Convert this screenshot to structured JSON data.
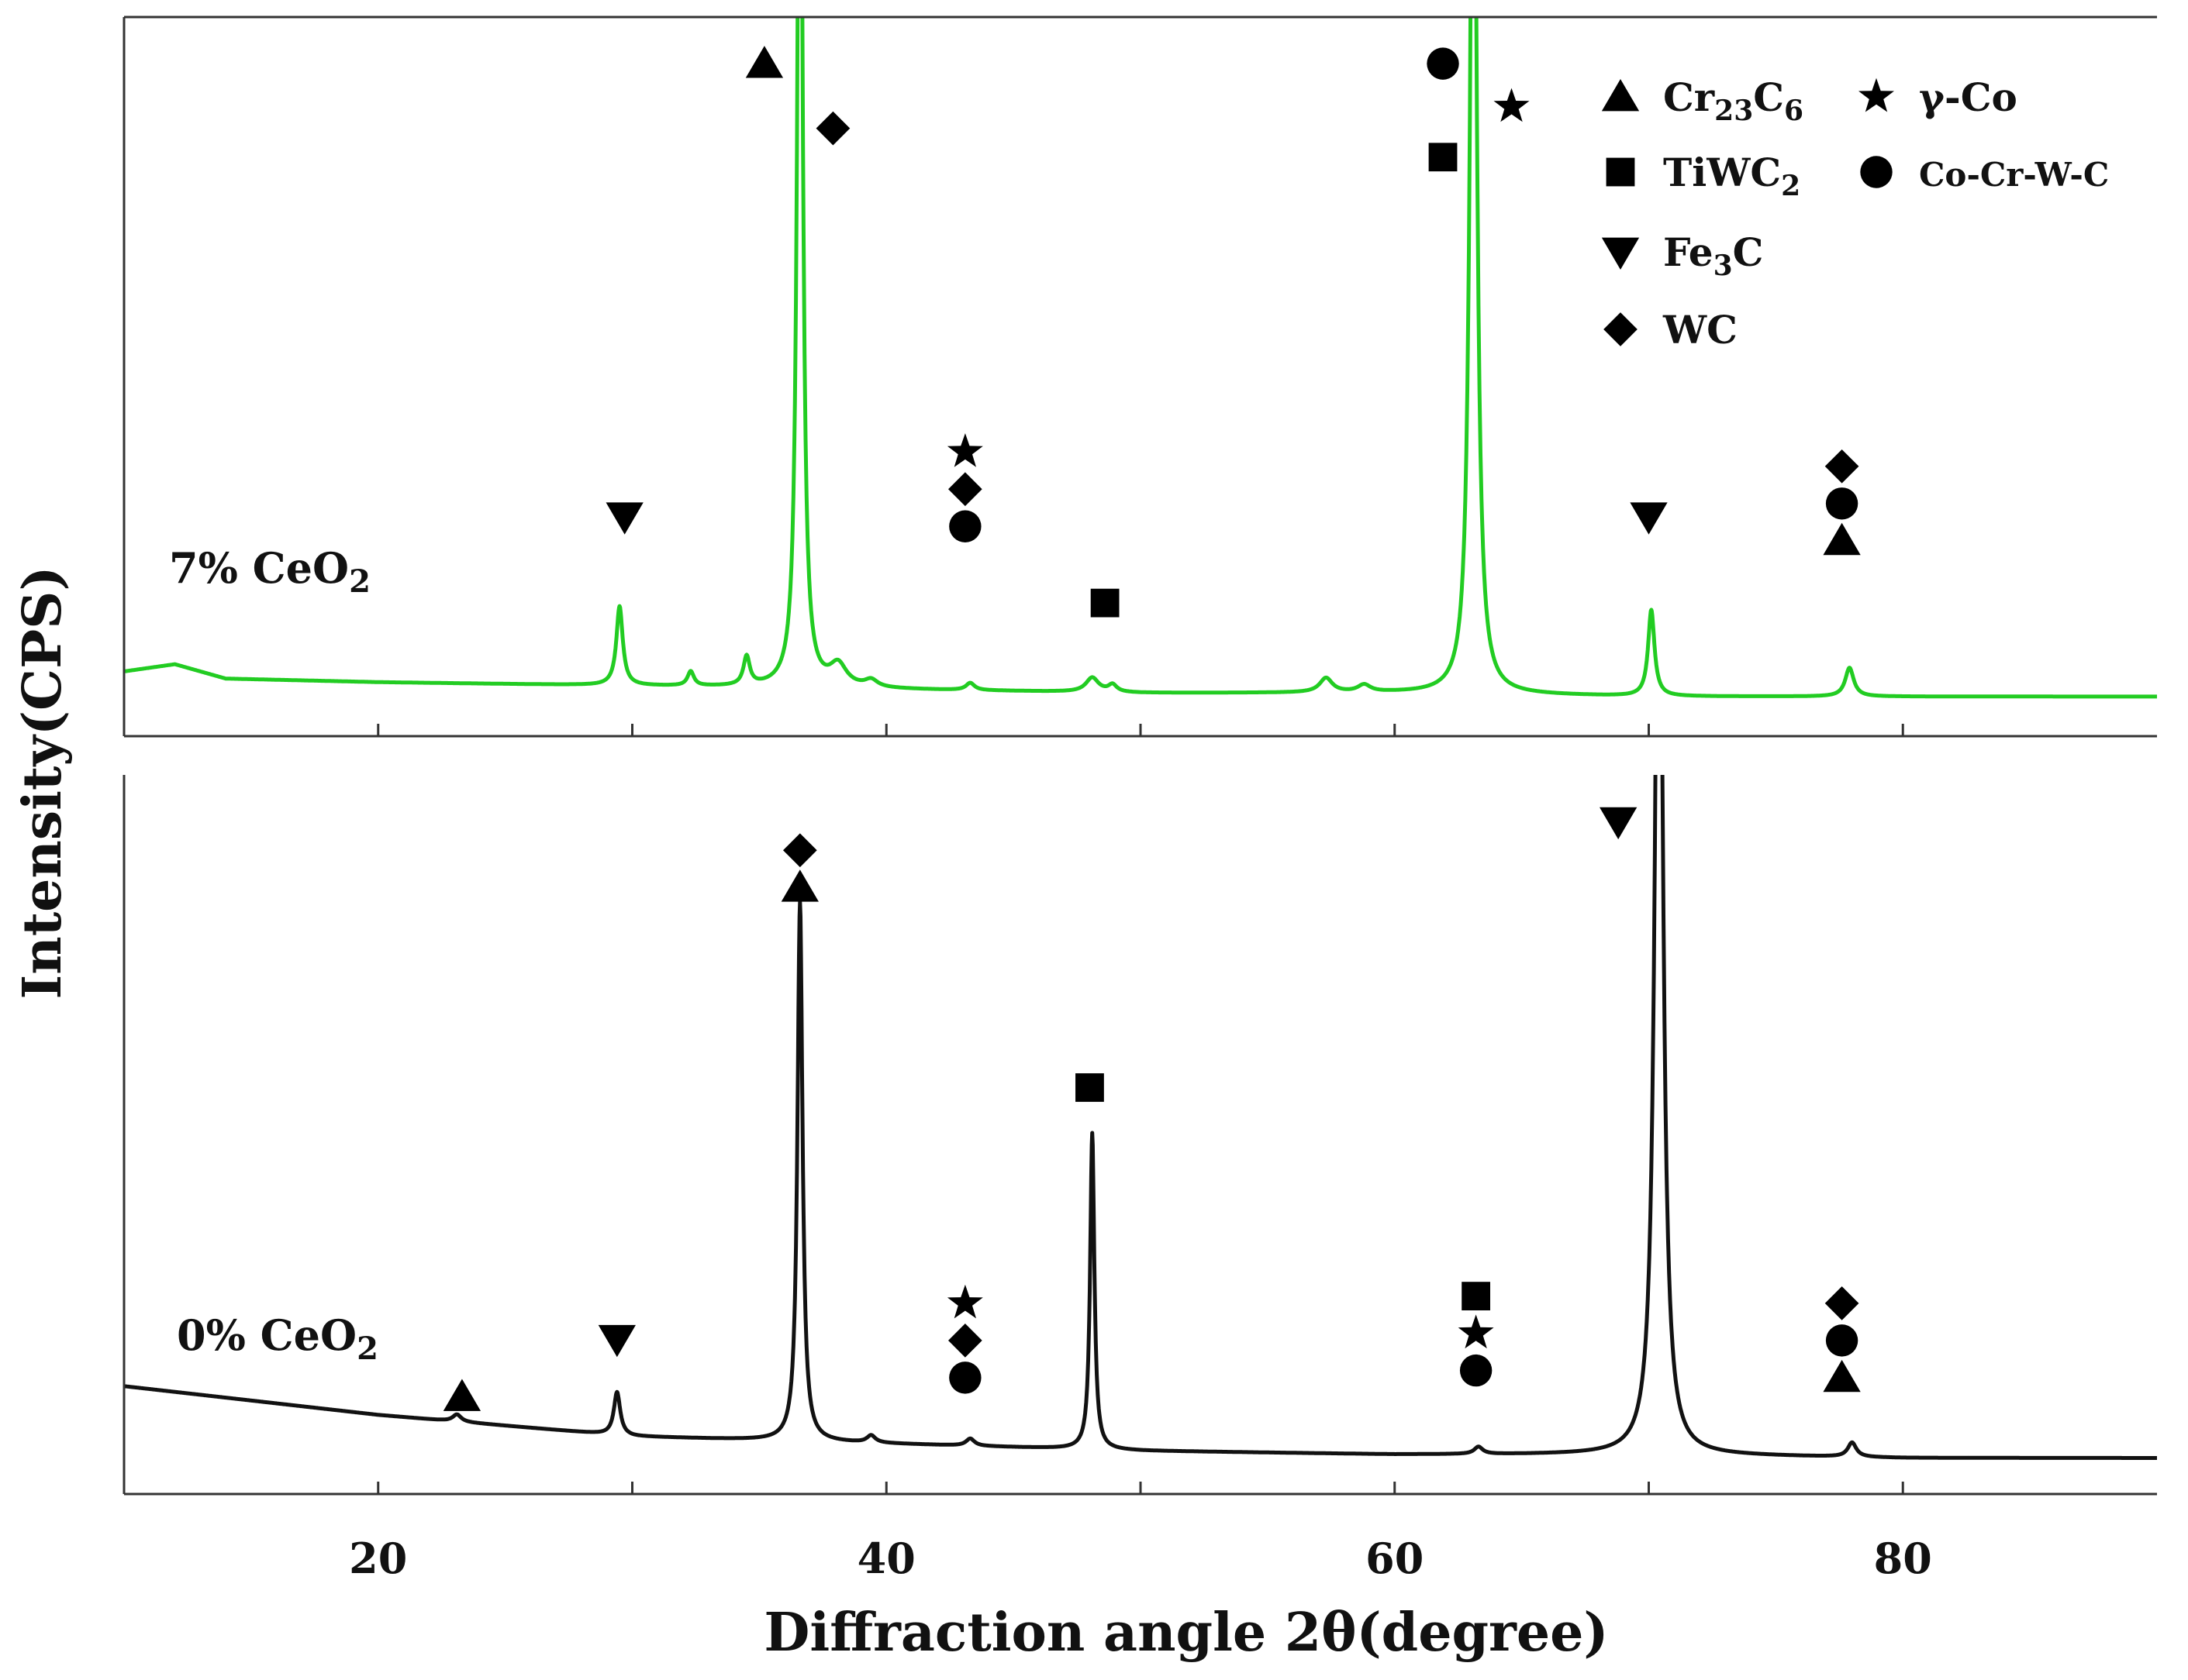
{
  "chart_data": {
    "type": "line",
    "title": "",
    "xlabel": "Diffraction angle 2θ(degree)",
    "ylabel": "Intensity(CPS)",
    "xlim": [
      10,
      90
    ],
    "xticks": [
      20,
      40,
      60,
      80
    ],
    "xminor_ticks": [
      30,
      50,
      70
    ],
    "colors": {
      "top": "#22cc22",
      "bottom": "#111111",
      "marker": "#000000"
    },
    "legend": [
      {
        "shape": "triangle-up",
        "label": "Cr23C6",
        "base": "Cr",
        "sub1": "23",
        "mid": "C",
        "sub2": "6"
      },
      {
        "shape": "star",
        "label": "γ-Co",
        "base": "γ-Co",
        "sub1": "",
        "mid": "",
        "sub2": ""
      },
      {
        "shape": "square",
        "label": "TiWC2",
        "base": "TiWC",
        "sub1": "2",
        "mid": "",
        "sub2": ""
      },
      {
        "shape": "circle",
        "label": "Co-Cr-W-C",
        "base": "Co-Cr-W-C",
        "sub1": "",
        "mid": "",
        "sub2": ""
      },
      {
        "shape": "triangle-down",
        "label": "Fe3C",
        "base": "Fe",
        "sub1": "3",
        "mid": "C",
        "sub2": ""
      },
      {
        "shape": "diamond",
        "label": "WC",
        "base": "WC",
        "sub1": "",
        "mid": "",
        "sub2": ""
      }
    ],
    "series": [
      {
        "name": "7% CeO2",
        "label_main": "7% CeO",
        "label_sub": "2",
        "panel": "top",
        "baseline": [
          [
            10,
            0.09
          ],
          [
            12,
            0.1
          ],
          [
            14,
            0.08
          ],
          [
            20,
            0.075
          ],
          [
            30,
            0.07
          ],
          [
            40,
            0.065
          ],
          [
            50,
            0.06
          ],
          [
            60,
            0.06
          ],
          [
            70,
            0.055
          ],
          [
            80,
            0.055
          ],
          [
            90,
            0.055
          ]
        ],
        "peaks": [
          {
            "x": 29.5,
            "h": 0.11,
            "w": 0.15
          },
          {
            "x": 32.3,
            "h": 0.02,
            "w": 0.15
          },
          {
            "x": 34.5,
            "h": 0.04,
            "w": 0.15
          },
          {
            "x": 36.6,
            "h": 1.5,
            "w": 0.12
          },
          {
            "x": 38.1,
            "h": 0.03,
            "w": 0.4
          },
          {
            "x": 39.4,
            "h": 0.01,
            "w": 0.3
          },
          {
            "x": 43.3,
            "h": 0.01,
            "w": 0.2
          },
          {
            "x": 48.1,
            "h": 0.02,
            "w": 0.3
          },
          {
            "x": 48.9,
            "h": 0.01,
            "w": 0.2
          },
          {
            "x": 57.3,
            "h": 0.02,
            "w": 0.3
          },
          {
            "x": 58.8,
            "h": 0.01,
            "w": 0.3
          },
          {
            "x": 63.1,
            "h": 1.5,
            "w": 0.15
          },
          {
            "x": 70.1,
            "h": 0.12,
            "w": 0.15
          },
          {
            "x": 77.9,
            "h": 0.04,
            "w": 0.2
          }
        ],
        "markers": [
          {
            "x": 35.2,
            "stack": [
              "triangle-up"
            ],
            "top": 0.96
          },
          {
            "x": 37.9,
            "stack": [
              "diamond"
            ],
            "top": 0.87
          },
          {
            "x": 43.1,
            "stack": [
              "star",
              "diamond",
              "circle"
            ],
            "top": 0.42
          },
          {
            "x": 29.7,
            "stack": [
              "triangle-down"
            ],
            "top": 0.33
          },
          {
            "x": 48.6,
            "stack": [
              "square"
            ],
            "top": 0.21
          },
          {
            "x": 61.9,
            "stack": [
              "circle"
            ],
            "top": 0.96
          },
          {
            "x": 61.9,
            "stack": [
              "square"
            ],
            "top": 0.83
          },
          {
            "x": 64.6,
            "stack": [
              "star"
            ],
            "top": 0.9
          },
          {
            "x": 70.0,
            "stack": [
              "triangle-down"
            ],
            "top": 0.33
          },
          {
            "x": 77.6,
            "stack": [
              "diamond",
              "circle",
              "triangle-up"
            ],
            "top": 0.4
          }
        ]
      },
      {
        "name": "0% CeO2",
        "label_main": "0% CeO",
        "label_sub": "2",
        "panel": "bottom",
        "baseline": [
          [
            10,
            0.15
          ],
          [
            20,
            0.11
          ],
          [
            30,
            0.08
          ],
          [
            40,
            0.07
          ],
          [
            50,
            0.06
          ],
          [
            60,
            0.055
          ],
          [
            70,
            0.055
          ],
          [
            80,
            0.05
          ],
          [
            90,
            0.05
          ]
        ],
        "peaks": [
          {
            "x": 23.1,
            "h": 0.01,
            "w": 0.2
          },
          {
            "x": 29.4,
            "h": 0.06,
            "w": 0.15
          },
          {
            "x": 36.6,
            "h": 0.75,
            "w": 0.12
          },
          {
            "x": 39.4,
            "h": 0.01,
            "w": 0.2
          },
          {
            "x": 43.3,
            "h": 0.01,
            "w": 0.2
          },
          {
            "x": 48.1,
            "h": 0.44,
            "w": 0.1
          },
          {
            "x": 63.3,
            "h": 0.01,
            "w": 0.2
          },
          {
            "x": 70.4,
            "h": 1.5,
            "w": 0.18
          },
          {
            "x": 78.0,
            "h": 0.02,
            "w": 0.2
          }
        ],
        "markers": [
          {
            "x": 23.3,
            "stack": [
              "triangle-up"
            ],
            "top": 0.16
          },
          {
            "x": 29.4,
            "stack": [
              "triangle-down"
            ],
            "top": 0.24
          },
          {
            "x": 36.6,
            "stack": [
              "diamond",
              "triangle-up"
            ],
            "top": 0.92
          },
          {
            "x": 43.1,
            "stack": [
              "star",
              "diamond",
              "circle"
            ],
            "top": 0.29
          },
          {
            "x": 48.0,
            "stack": [
              "square"
            ],
            "top": 0.59
          },
          {
            "x": 63.2,
            "stack": [
              "square",
              "star",
              "circle"
            ],
            "top": 0.3
          },
          {
            "x": 68.8,
            "stack": [
              "triangle-down"
            ],
            "top": 0.96
          },
          {
            "x": 77.6,
            "stack": [
              "diamond",
              "circle",
              "triangle-up"
            ],
            "top": 0.29
          }
        ]
      }
    ]
  }
}
